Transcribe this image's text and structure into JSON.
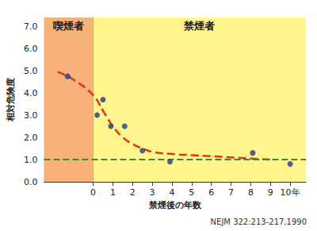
{
  "chart_data": {
    "type": "scatter",
    "x_label": "禁煙後の年数",
    "y_label": "相対危険度",
    "source": "NEJM 322:213-217,1990",
    "xlim": [
      -2.5,
      10.8
    ],
    "xticks": [
      0,
      1,
      2,
      3,
      4,
      5,
      6,
      7,
      8,
      9,
      {
        "value": 10,
        "label": "10年"
      }
    ],
    "ylim": [
      0,
      7.4
    ],
    "yticks": [
      {
        "value": 0,
        "label": "0.0"
      },
      {
        "value": 1,
        "label": "1.0"
      },
      {
        "value": 2,
        "label": "2.0"
      },
      {
        "value": 3,
        "label": "3.0"
      },
      {
        "value": 4,
        "label": "4.0"
      },
      {
        "value": 5,
        "label": "5.0"
      },
      {
        "value": 6,
        "label": "6.0"
      },
      {
        "value": 7,
        "label": "7.0"
      }
    ],
    "grid": false,
    "regions": [
      {
        "label": "喫煙者",
        "from": -2.5,
        "to": 0,
        "color": "#f7b27a"
      },
      {
        "label": "禁煙者",
        "from": 0,
        "to": 10.8,
        "color": "#fff58c"
      }
    ],
    "series": [
      {
        "type": "scatter",
        "color": "#1e3c8c",
        "marker": "circle",
        "x": [
          -1.3,
          0.2,
          0.5,
          0.9,
          1.6,
          2.5,
          3.9,
          8.1,
          10
        ],
        "values": [
          4.75,
          3.0,
          3.7,
          2.5,
          2.5,
          1.4,
          0.9,
          1.3,
          0.8
        ]
      },
      {
        "type": "line",
        "color": "#e0341c",
        "line_style": "dashed",
        "x": [
          -1.8,
          -1,
          0,
          0.5,
          1,
          1.5,
          2,
          2.5,
          3,
          4,
          5,
          6,
          7,
          8,
          9
        ],
        "values": [
          4.95,
          4.6,
          3.9,
          3.2,
          2.5,
          2.0,
          1.7,
          1.5,
          1.35,
          1.25,
          1.2,
          1.15,
          1.1,
          1.05,
          1.0
        ]
      },
      {
        "type": "line",
        "color": "#3a8a3a",
        "line_style": "dashed",
        "x": [
          -2.5,
          10.8
        ],
        "values": [
          1.0,
          1.0
        ]
      }
    ]
  }
}
